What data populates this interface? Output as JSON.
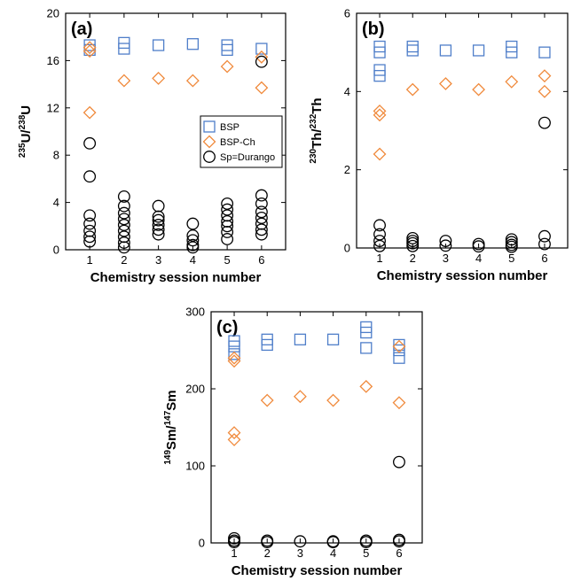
{
  "colors": {
    "bsp": "#4f7ec9",
    "bsp_ch": "#f08a3c",
    "spike": "#000000"
  },
  "chart_data": [
    {
      "type": "scatter",
      "panel_label": "(a)",
      "xlabel": "Chemistry session number",
      "ylabel_base": "U/",
      "ylabel_parts": [
        "235",
        "U/",
        "238",
        "U"
      ],
      "xlim": [
        0.3,
        6.7
      ],
      "ylim": [
        0,
        20
      ],
      "x_ticks": [
        1,
        2,
        3,
        4,
        5,
        6
      ],
      "y_ticks": [
        0,
        4,
        8,
        12,
        16,
        20
      ],
      "legend": {
        "placement": "center-right",
        "entries": [
          {
            "label": "BSP",
            "marker": "square",
            "series": "bsp"
          },
          {
            "label": "BSP-Ch",
            "marker": "diamond",
            "series": "bsp_ch"
          },
          {
            "label": "Sp=Durango",
            "marker": "circle",
            "series": "spike"
          }
        ]
      },
      "series": [
        {
          "name": "BSP",
          "marker": "square",
          "color_key": "bsp",
          "points": [
            [
              1,
              17.3
            ],
            [
              1,
              16.9
            ],
            [
              2,
              17.5
            ],
            [
              2,
              17.0
            ],
            [
              3,
              17.3
            ],
            [
              4,
              17.4
            ],
            [
              5,
              17.3
            ],
            [
              5,
              16.9
            ],
            [
              6,
              17.0
            ]
          ]
        },
        {
          "name": "BSP-Ch",
          "marker": "diamond",
          "color_key": "bsp_ch",
          "points": [
            [
              1,
              17.1
            ],
            [
              1,
              16.8
            ],
            [
              1,
              11.6
            ],
            [
              2,
              14.3
            ],
            [
              3,
              14.5
            ],
            [
              4,
              14.3
            ],
            [
              5,
              15.5
            ],
            [
              6,
              16.3
            ],
            [
              6,
              13.7
            ]
          ]
        },
        {
          "name": "Sp=Durango",
          "marker": "circle",
          "color_key": "spike",
          "points": [
            [
              1,
              9.0
            ],
            [
              1,
              6.2
            ],
            [
              1,
              2.9
            ],
            [
              1,
              2.2
            ],
            [
              1,
              1.6
            ],
            [
              1,
              1.1
            ],
            [
              1,
              0.7
            ],
            [
              2,
              4.5
            ],
            [
              2,
              3.7
            ],
            [
              2,
              3.1
            ],
            [
              2,
              2.6
            ],
            [
              2,
              2.1
            ],
            [
              2,
              1.6
            ],
            [
              2,
              1.1
            ],
            [
              2,
              0.6
            ],
            [
              2,
              0.2
            ],
            [
              3,
              3.7
            ],
            [
              3,
              2.8
            ],
            [
              3,
              2.5
            ],
            [
              3,
              2.1
            ],
            [
              3,
              1.7
            ],
            [
              3,
              1.3
            ],
            [
              4,
              2.2
            ],
            [
              4,
              1.2
            ],
            [
              4,
              0.8
            ],
            [
              4,
              0.4
            ],
            [
              4,
              0.2
            ],
            [
              5,
              3.9
            ],
            [
              5,
              3.4
            ],
            [
              5,
              2.9
            ],
            [
              5,
              2.4
            ],
            [
              5,
              2.0
            ],
            [
              5,
              1.5
            ],
            [
              5,
              0.9
            ],
            [
              6,
              15.9
            ],
            [
              6,
              4.6
            ],
            [
              6,
              3.9
            ],
            [
              6,
              3.2
            ],
            [
              6,
              2.7
            ],
            [
              6,
              2.2
            ],
            [
              6,
              1.7
            ],
            [
              6,
              1.3
            ]
          ]
        }
      ]
    },
    {
      "type": "scatter",
      "panel_label": "(b)",
      "xlabel": "Chemistry session number",
      "ylabel_parts": [
        "230",
        "Th/",
        "232",
        "Th"
      ],
      "xlim": [
        0.3,
        6.7
      ],
      "ylim": [
        0,
        6
      ],
      "x_ticks": [
        1,
        2,
        3,
        4,
        5,
        6
      ],
      "y_ticks": [
        0,
        2,
        4,
        6
      ],
      "series": [
        {
          "name": "BSP",
          "marker": "square",
          "color_key": "bsp",
          "points": [
            [
              1,
              5.15
            ],
            [
              1,
              5.0
            ],
            [
              1,
              4.55
            ],
            [
              1,
              4.4
            ],
            [
              2,
              5.15
            ],
            [
              2,
              5.05
            ],
            [
              3,
              5.05
            ],
            [
              4,
              5.05
            ],
            [
              5,
              5.15
            ],
            [
              5,
              5.0
            ],
            [
              6,
              5.0
            ]
          ]
        },
        {
          "name": "BSP-Ch",
          "marker": "diamond",
          "color_key": "bsp_ch",
          "points": [
            [
              1,
              3.5
            ],
            [
              1,
              3.4
            ],
            [
              1,
              2.4
            ],
            [
              2,
              4.05
            ],
            [
              3,
              4.2
            ],
            [
              4,
              4.05
            ],
            [
              5,
              4.25
            ],
            [
              6,
              4.4
            ],
            [
              6,
              4.0
            ]
          ]
        },
        {
          "name": "Sp=Durango",
          "marker": "circle",
          "color_key": "spike",
          "points": [
            [
              1,
              0.58
            ],
            [
              1,
              0.35
            ],
            [
              1,
              0.18
            ],
            [
              1,
              0.05
            ],
            [
              2,
              0.25
            ],
            [
              2,
              0.18
            ],
            [
              2,
              0.12
            ],
            [
              2,
              0.05
            ],
            [
              3,
              0.18
            ],
            [
              3,
              0.06
            ],
            [
              4,
              0.1
            ],
            [
              4,
              0.04
            ],
            [
              5,
              0.22
            ],
            [
              5,
              0.15
            ],
            [
              5,
              0.08
            ],
            [
              5,
              0.03
            ],
            [
              6,
              3.2
            ],
            [
              6,
              0.3
            ],
            [
              6,
              0.1
            ]
          ]
        }
      ]
    },
    {
      "type": "scatter",
      "panel_label": "(c)",
      "xlabel": "Chemistry session number",
      "ylabel_parts": [
        "149",
        "Sm/",
        "147",
        "Sm"
      ],
      "xlim": [
        0.3,
        6.7
      ],
      "ylim": [
        0,
        300
      ],
      "x_ticks": [
        1,
        2,
        3,
        4,
        5,
        6
      ],
      "y_ticks": [
        0,
        100,
        200,
        300
      ],
      "series": [
        {
          "name": "BSP",
          "marker": "square",
          "color_key": "bsp",
          "points": [
            [
              1,
              262
            ],
            [
              1,
              255
            ],
            [
              1,
              245
            ],
            [
              2,
              264
            ],
            [
              2,
              257
            ],
            [
              3,
              264
            ],
            [
              4,
              264
            ],
            [
              5,
              280
            ],
            [
              5,
              273
            ],
            [
              5,
              253
            ],
            [
              6,
              257
            ],
            [
              6,
              250
            ],
            [
              6,
              240
            ]
          ]
        },
        {
          "name": "BSP-Ch",
          "marker": "diamond",
          "color_key": "bsp_ch",
          "points": [
            [
              1,
              240
            ],
            [
              1,
              236
            ],
            [
              1,
              143
            ],
            [
              1,
              134
            ],
            [
              2,
              185
            ],
            [
              3,
              190
            ],
            [
              4,
              185
            ],
            [
              5,
              203
            ],
            [
              6,
              255
            ],
            [
              6,
              182
            ]
          ]
        },
        {
          "name": "Sp=Durango",
          "marker": "circle",
          "color_key": "spike",
          "points": [
            [
              1,
              6
            ],
            [
              1,
              3
            ],
            [
              1,
              1
            ],
            [
              2,
              3
            ],
            [
              2,
              1
            ],
            [
              3,
              2
            ],
            [
              4,
              2
            ],
            [
              4,
              1
            ],
            [
              5,
              3
            ],
            [
              5,
              1
            ],
            [
              6,
              105
            ],
            [
              6,
              4
            ],
            [
              6,
              2
            ]
          ]
        }
      ]
    }
  ]
}
